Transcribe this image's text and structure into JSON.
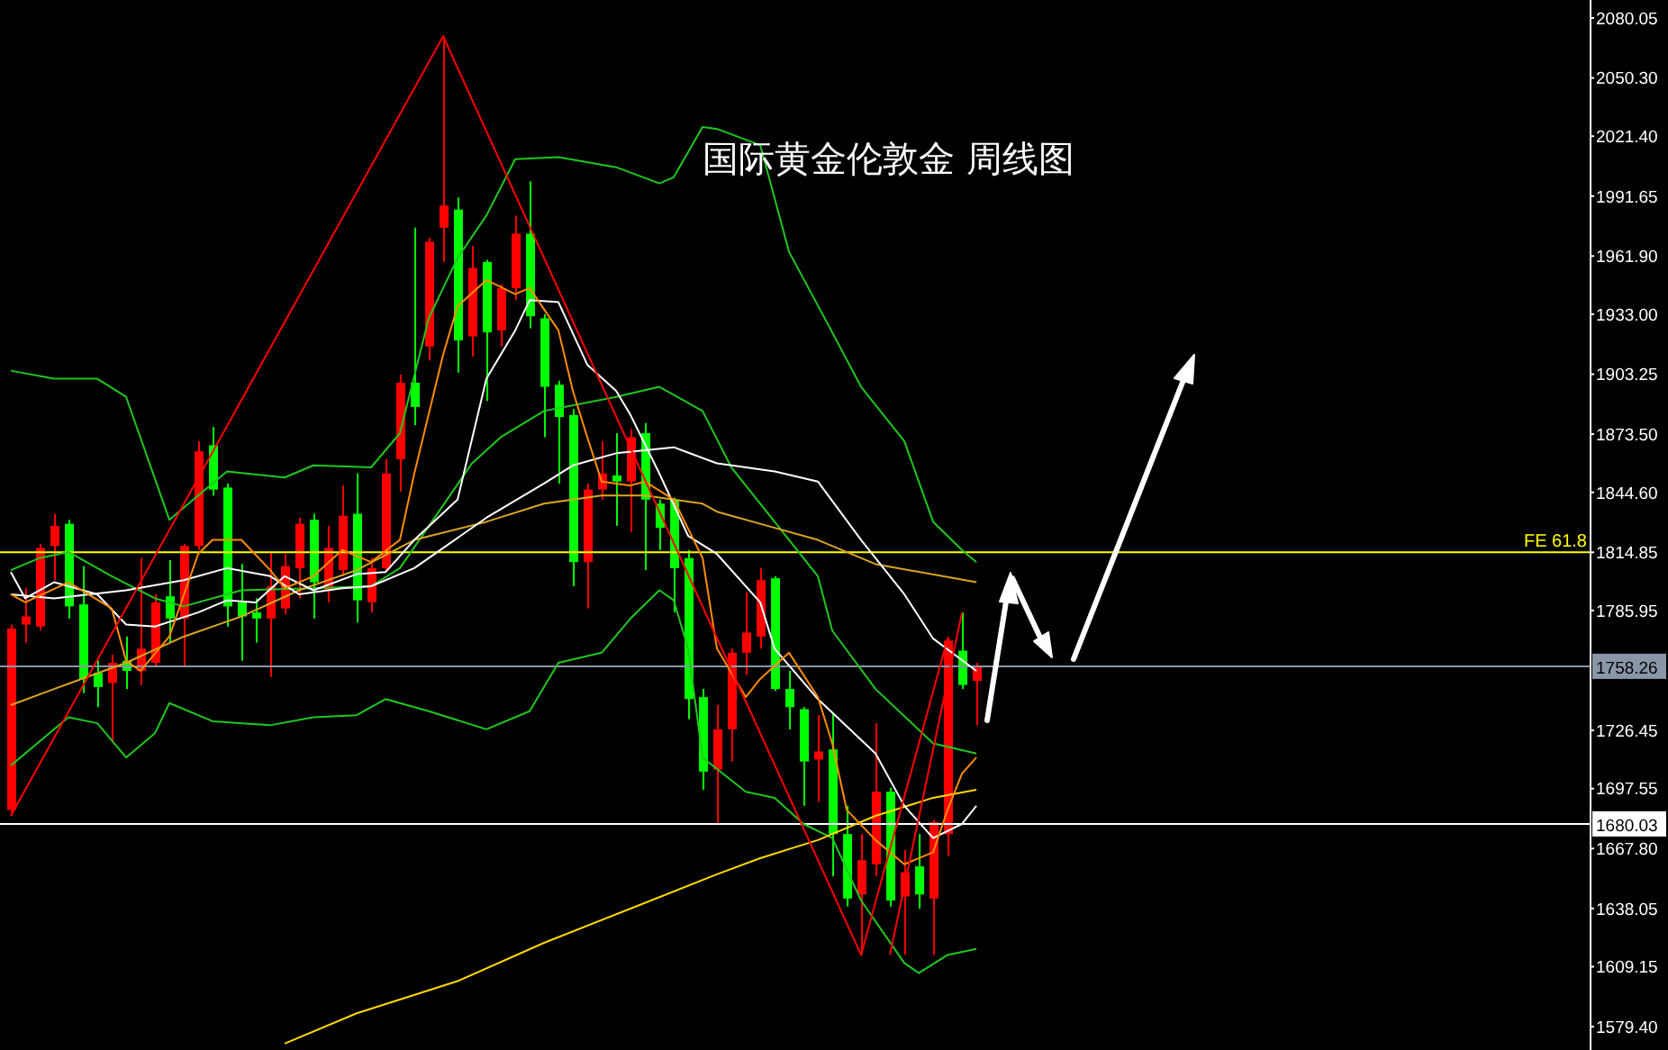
{
  "chart_data": {
    "type": "candlestick",
    "title": "国际黄金伦敦金 周线图",
    "categories": [
      null,
      null,
      null,
      null,
      null,
      null,
      null,
      null,
      null,
      null,
      null,
      null,
      null,
      null,
      null,
      null,
      null,
      null,
      null,
      null,
      null,
      null,
      null,
      null,
      null,
      null,
      null,
      null,
      null,
      null,
      null,
      null,
      null,
      null,
      null,
      null,
      null,
      null,
      null,
      null,
      null,
      null,
      null,
      null,
      null,
      null,
      null,
      null,
      null,
      null,
      null,
      null,
      null,
      null,
      null,
      null,
      null,
      null,
      null,
      null,
      null,
      null,
      null,
      null,
      null,
      null,
      null,
      null
    ],
    "ohlc": [
      [
        1687,
        1779,
        1684,
        1777
      ],
      [
        1779,
        1797,
        1770,
        1783
      ],
      [
        1778,
        1819,
        1776,
        1817
      ],
      [
        1818,
        1834,
        1801,
        1828
      ],
      [
        1829,
        1831,
        1782,
        1788
      ],
      [
        1789,
        1808,
        1745,
        1752
      ],
      [
        1755,
        1761,
        1738,
        1748
      ],
      [
        1750,
        1764,
        1721,
        1760
      ],
      [
        1761,
        1773,
        1747,
        1756
      ],
      [
        1756,
        1812,
        1749,
        1767
      ],
      [
        1760,
        1794,
        1758,
        1790
      ],
      [
        1793,
        1811,
        1770,
        1782
      ],
      [
        1782,
        1819,
        1758,
        1818
      ],
      [
        1818,
        1870,
        1816,
        1865
      ],
      [
        1868,
        1877,
        1843,
        1846
      ],
      [
        1847,
        1849,
        1778,
        1788
      ],
      [
        1790,
        1809,
        1761,
        1783
      ],
      [
        1785,
        1792,
        1770,
        1782
      ],
      [
        1782,
        1815,
        1753,
        1798
      ],
      [
        1787,
        1814,
        1784,
        1808
      ],
      [
        1807,
        1832,
        1792,
        1829
      ],
      [
        1831,
        1834,
        1782,
        1800
      ],
      [
        1796,
        1828,
        1790,
        1817
      ],
      [
        1806,
        1848,
        1803,
        1833
      ],
      [
        1834,
        1854,
        1780,
        1791
      ],
      [
        1790,
        1812,
        1785,
        1807
      ],
      [
        1807,
        1861,
        1805,
        1854
      ],
      [
        1861,
        1903,
        1845,
        1899
      ],
      [
        1899,
        1976,
        1878,
        1887
      ],
      [
        1917,
        1971,
        1910,
        1969
      ],
      [
        1976,
        2071,
        1959,
        1987
      ],
      [
        1985,
        1991,
        1904,
        1920
      ],
      [
        1922,
        1967,
        1912,
        1956
      ],
      [
        1959,
        1960,
        1890,
        1924
      ],
      [
        1925,
        1948,
        1917,
        1946
      ],
      [
        1946,
        1982,
        1940,
        1973
      ],
      [
        1973,
        1999,
        1926,
        1932
      ],
      [
        1931,
        1933,
        1872,
        1897
      ],
      [
        1898,
        1900,
        1849,
        1882
      ],
      [
        1883,
        1886,
        1798,
        1810
      ],
      [
        1810,
        1849,
        1787,
        1846
      ],
      [
        1846,
        1870,
        1841,
        1854
      ],
      [
        1853,
        1874,
        1828,
        1850
      ],
      [
        1850,
        1876,
        1825,
        1872
      ],
      [
        1874,
        1879,
        1806,
        1841
      ],
      [
        1839,
        1841,
        1816,
        1827
      ],
      [
        1841,
        1842,
        1785,
        1807
      ],
      [
        1812,
        1816,
        1732,
        1742
      ],
      [
        1743,
        1747,
        1697,
        1706
      ],
      [
        1707,
        1739,
        1680,
        1727
      ],
      [
        1727,
        1767,
        1711,
        1765
      ],
      [
        1765,
        1795,
        1754,
        1775
      ],
      [
        1773,
        1807,
        1767,
        1801
      ],
      [
        1802,
        1803,
        1746,
        1747
      ],
      [
        1747,
        1756,
        1727,
        1738
      ],
      [
        1737,
        1738,
        1689,
        1711
      ],
      [
        1712,
        1734,
        1691,
        1716
      ],
      [
        1717,
        1735,
        1654,
        1675
      ],
      [
        1675,
        1689,
        1639,
        1643
      ],
      [
        1645,
        1675,
        1615,
        1662
      ],
      [
        1660,
        1730,
        1654,
        1696
      ],
      [
        1696,
        1698,
        1639,
        1642
      ],
      [
        1644,
        1667,
        1615,
        1656
      ],
      [
        1659,
        1675,
        1638,
        1645
      ],
      [
        1643,
        1682,
        1615,
        1681
      ],
      [
        1675,
        1773,
        1664,
        1771
      ],
      [
        1766,
        1785,
        1747,
        1749
      ],
      [
        1751,
        1760,
        1729,
        1758
      ]
    ],
    "colors": [
      "#ff0000",
      "#ff0000",
      "#ff0000",
      "#ff0000",
      "#00ff00",
      "#00ff00",
      "#00ff00",
      "#ff0000",
      "#00ff00",
      "#ff0000",
      "#ff0000",
      "#00ff00",
      "#ff0000",
      "#ff0000",
      "#00ff00",
      "#00ff00",
      "#00ff00",
      "#00ff00",
      "#ff0000",
      "#ff0000",
      "#ff0000",
      "#00ff00",
      "#ff0000",
      "#ff0000",
      "#00ff00",
      "#ff0000",
      "#ff0000",
      "#ff0000",
      "#00ff00",
      "#ff0000",
      "#ff0000",
      "#00ff00",
      "#ff0000",
      "#00ff00",
      "#ff0000",
      "#ff0000",
      "#00ff00",
      "#00ff00",
      "#00ff00",
      "#00ff00",
      "#ff0000",
      "#ff0000",
      "#00ff00",
      "#ff0000",
      "#00ff00",
      "#00ff00",
      "#00ff00",
      "#00ff00",
      "#00ff00",
      "#ff0000",
      "#ff0000",
      "#ff0000",
      "#ff0000",
      "#00ff00",
      "#00ff00",
      "#00ff00",
      "#ff0000",
      "#00ff00",
      "#00ff00",
      "#ff0000",
      "#ff0000",
      "#00ff00",
      "#ff0000",
      "#00ff00",
      "#ff0000",
      "#ff0000",
      "#00ff00",
      "#ff0000"
    ],
    "series": [
      {
        "type": "line",
        "color": "#1ec81e",
        "values": [
          1905,
          null,
          null,
          1901,
          null,
          null,
          1901,
          null,
          1892,
          null,
          null,
          1831,
          null,
          1843,
          null,
          1855,
          null,
          null,
          null,
          1852,
          null,
          1858,
          null,
          null,
          null,
          1857,
          null,
          1874,
          null,
          1931,
          null,
          1961,
          null,
          1982,
          null,
          2010,
          null,
          null,
          2011,
          null,
          null,
          null,
          2006,
          null,
          null,
          1998,
          2001,
          null,
          2026,
          2025,
          null,
          null,
          2017,
          null,
          1964,
          null,
          null,
          1924,
          null,
          1897,
          null,
          null,
          1870,
          null,
          1830,
          null,
          1816,
          1810
        ]
      },
      {
        "type": "line",
        "color": "#1ec81e",
        "values": [
          1806,
          null,
          1812,
          null,
          1815,
          null,
          null,
          1803,
          null,
          null,
          1792,
          null,
          1788,
          null,
          null,
          null,
          1796,
          null,
          null,
          null,
          null,
          1797,
          null,
          null,
          null,
          1798,
          null,
          1807,
          null,
          null,
          null,
          null,
          1859,
          null,
          1872,
          null,
          null,
          1885,
          null,
          null,
          null,
          null,
          1892,
          null,
          null,
          1897,
          null,
          null,
          1885,
          null,
          1857,
          null,
          null,
          1830,
          null,
          null,
          1803,
          1776,
          null,
          null,
          1747,
          null,
          null,
          null,
          1720,
          null,
          null,
          1715
        ]
      },
      {
        "type": "line",
        "color": "#1ec81e",
        "values": [
          1709,
          null,
          1721,
          null,
          1733,
          null,
          1730,
          null,
          1713,
          null,
          1725,
          1740,
          null,
          null,
          1731,
          null,
          null,
          null,
          1729,
          null,
          null,
          1733,
          null,
          null,
          1734,
          null,
          1742,
          null,
          null,
          1736,
          null,
          null,
          null,
          1727,
          null,
          null,
          1736,
          null,
          1760,
          null,
          null,
          1765,
          null,
          1782,
          null,
          1796,
          1791,
          1767,
          1713,
          null,
          null,
          1696,
          null,
          1693,
          null,
          1680,
          null,
          1673,
          null,
          1642,
          null,
          null,
          1611,
          1606,
          null,
          1615,
          null,
          1618
        ]
      },
      {
        "type": "line",
        "color": "#ffd700",
        "values": [
          null,
          null,
          null,
          null,
          null,
          null,
          null,
          null,
          null,
          null,
          null,
          null,
          null,
          null,
          null,
          null,
          null,
          null,
          null,
          1571,
          null,
          null,
          null,
          null,
          1586,
          null,
          null,
          null,
          null,
          null,
          null,
          1602,
          null,
          null,
          null,
          null,
          null,
          1621,
          null,
          null,
          null,
          null,
          null,
          1638,
          null,
          null,
          null,
          null,
          null,
          1655,
          null,
          null,
          1663,
          null,
          null,
          null,
          1672,
          null,
          null,
          null,
          1684,
          null,
          null,
          null,
          1693,
          null,
          null,
          1697
        ]
      },
      {
        "type": "line",
        "color": "#daa520",
        "values": [
          1739,
          null,
          null,
          1747,
          null,
          null,
          null,
          null,
          1760,
          null,
          null,
          null,
          1773,
          null,
          null,
          null,
          1783,
          null,
          null,
          null,
          1796,
          null,
          null,
          null,
          1806,
          null,
          null,
          null,
          1821,
          null,
          null,
          null,
          null,
          1830,
          null,
          null,
          null,
          1839,
          null,
          null,
          null,
          1843,
          null,
          null,
          1843,
          null,
          null,
          null,
          1839,
          1835,
          null,
          null,
          null,
          1827,
          null,
          null,
          1821,
          null,
          null,
          null,
          1809,
          null,
          null,
          null,
          null,
          null,
          null,
          1800
        ]
      },
      {
        "type": "line",
        "color": "#ffffff",
        "values": [
          1794,
          null,
          null,
          1792,
          null,
          null,
          null,
          null,
          1796,
          null,
          null,
          null,
          1801,
          null,
          null,
          1807,
          null,
          null,
          1803,
          null,
          1794,
          null,
          null,
          1797,
          null,
          1798,
          null,
          null,
          1807,
          null,
          null,
          null,
          null,
          1832,
          null,
          null,
          null,
          1849,
          null,
          1858,
          null,
          null,
          1864,
          null,
          null,
          null,
          1867,
          null,
          null,
          1859,
          null,
          null,
          null,
          1855,
          null,
          null,
          1850,
          null,
          null,
          1821,
          null,
          null,
          1794,
          null,
          1772,
          null,
          null,
          1756
        ]
      },
      {
        "type": "line",
        "color": "#ffffff",
        "values": [
          1805,
          1792,
          null,
          1800,
          null,
          null,
          1794,
          null,
          1779,
          null,
          1778,
          null,
          null,
          1785,
          null,
          1791,
          null,
          1790,
          null,
          1803,
          null,
          1796,
          null,
          null,
          1804,
          null,
          1805,
          null,
          1821,
          null,
          null,
          1841,
          null,
          1901,
          null,
          1925,
          1940,
          null,
          1939,
          null,
          1908,
          null,
          1895,
          1883,
          null,
          1854,
          null,
          1823,
          null,
          1814,
          null,
          null,
          1790,
          1767,
          null,
          null,
          1742,
          null,
          null,
          null,
          1715,
          null,
          1689,
          null,
          1673,
          null,
          1680,
          1689
        ]
      },
      {
        "type": "line",
        "color": "#ff8c00",
        "values": [
          1794,
          1790,
          null,
          null,
          1800,
          null,
          null,
          1787,
          1761,
          1756,
          null,
          1773,
          null,
          1814,
          1821,
          null,
          1821,
          null,
          1806,
          1797,
          null,
          1803,
          null,
          1816,
          null,
          1810,
          null,
          1821,
          1854,
          null,
          1913,
          1937,
          null,
          1950,
          null,
          1943,
          1946,
          null,
          1925,
          1895,
          1872,
          1850,
          null,
          1848,
          1850,
          null,
          1841,
          null,
          1812,
          1767,
          null,
          1743,
          1752,
          null,
          1765,
          null,
          1743,
          1720,
          1687,
          null,
          1672,
          null,
          1660,
          null,
          1666,
          1687,
          1705,
          1713
        ]
      },
      {
        "type": "line",
        "color": "#ff0000",
        "values": [
          1684,
          null,
          null,
          null,
          null,
          null,
          null,
          null,
          null,
          null,
          null,
          null,
          null,
          null,
          null,
          null,
          null,
          null,
          null,
          null,
          null,
          null,
          null,
          null,
          null,
          null,
          null,
          null,
          null,
          null,
          2071,
          null,
          null,
          null,
          null,
          null,
          null,
          null,
          null,
          null,
          null,
          null,
          null,
          null,
          null,
          null,
          null,
          null,
          null,
          null,
          null,
          null,
          null,
          null,
          null,
          null,
          null,
          null,
          null,
          1615,
          null,
          null,
          null,
          null,
          null,
          1772,
          null,
          null
        ]
      },
      {
        "type": "line",
        "color": "#ff0000",
        "values": [
          null,
          null,
          null,
          null,
          null,
          null,
          null,
          null,
          null,
          null,
          null,
          null,
          null,
          null,
          null,
          null,
          null,
          null,
          null,
          null,
          null,
          null,
          null,
          null,
          null,
          null,
          null,
          null,
          null,
          null,
          null,
          null,
          null,
          null,
          null,
          null,
          null,
          null,
          null,
          null,
          null,
          null,
          null,
          null,
          null,
          null,
          null,
          null,
          null,
          null,
          null,
          null,
          null,
          null,
          null,
          null,
          null,
          null,
          null,
          null,
          null,
          1615,
          null,
          null,
          null,
          null,
          1785,
          null
        ]
      }
    ],
    "ylim": [
      1567.8,
      2089
    ],
    "yticks": [
      2080.05,
      {
        "value": 2050.3,
        "label": "2050.30"
      },
      {
        "value": 2021.4,
        "label": "2021.40"
      },
      1991.65,
      {
        "value": 1961.9,
        "label": "1961.90"
      },
      {
        "value": 1933,
        "label": "1933.00"
      },
      1903.25,
      {
        "value": 1873.5,
        "label": "1873.50"
      },
      {
        "value": 1844.6,
        "label": "1844.60"
      },
      1814.85,
      1785.95,
      1726.45,
      1697.55,
      {
        "value": 1667.8,
        "label": "1667.80"
      },
      1638.05,
      1609.15,
      {
        "value": 1579.4,
        "label": "1579.40"
      }
    ],
    "ref_lines": [
      {
        "axis": "y",
        "value": 1814.85,
        "label": "FE 61.8",
        "color": "#ffff00"
      },
      {
        "axis": "y",
        "value": 1758.26,
        "label": "1758.26",
        "color": "#8a96a8"
      },
      {
        "axis": "y",
        "value": 1680.03,
        "label": "1680.03",
        "color": "#ffffff"
      }
    ],
    "marker": "none"
  }
}
